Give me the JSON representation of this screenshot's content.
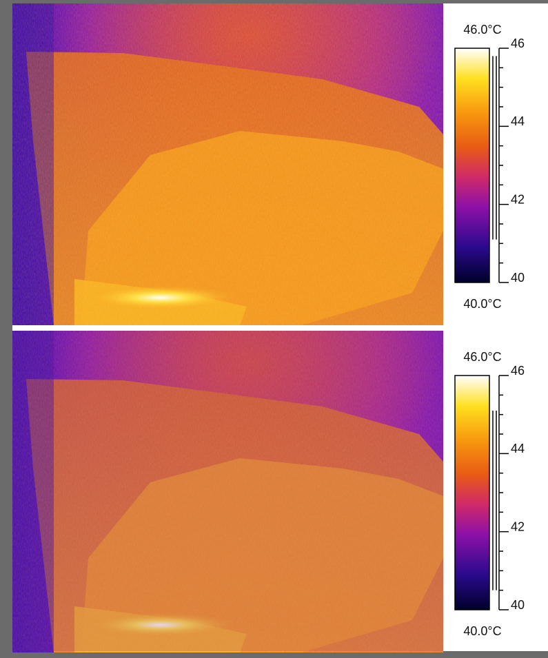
{
  "panels": [
    {
      "max_label": "46.0°C",
      "min_label": "40.0°C",
      "scale": {
        "range": [
          40,
          46
        ],
        "ticks": [
          40,
          42,
          44,
          46
        ],
        "minor_ticks": [
          40.5,
          41,
          41.5,
          42.5,
          43,
          43.5,
          44.5,
          45,
          45.5
        ],
        "range_bar": [
          41.1,
          45.8
        ]
      }
    },
    {
      "max_label": "46.0°C",
      "min_label": "40.0°C",
      "scale": {
        "range": [
          40,
          46
        ],
        "ticks": [
          40,
          42,
          44,
          46
        ],
        "minor_ticks": [
          40.5,
          41,
          41.5,
          42.5,
          43,
          43.5,
          44.5,
          45,
          45.5
        ],
        "range_bar": [
          40.5,
          45.1
        ]
      }
    }
  ]
}
